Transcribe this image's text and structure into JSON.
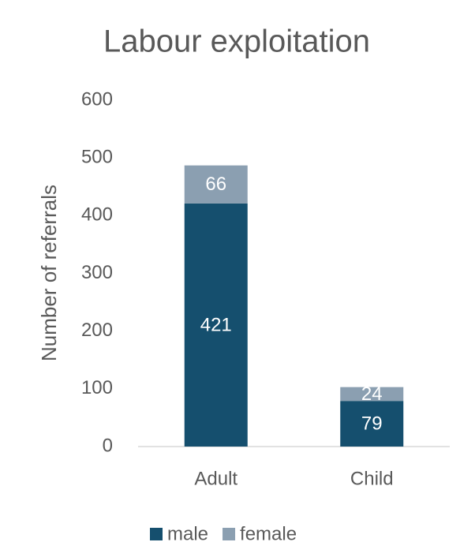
{
  "chart_data": {
    "type": "stacked_bar",
    "title": "Labour exploitation",
    "y_label": "Number of referrals",
    "categories": [
      "Adult",
      "Child"
    ],
    "series": [
      {
        "name": "male",
        "color": "#154f6e",
        "values": [
          421,
          79
        ]
      },
      {
        "name": "female",
        "color": "#8b9fb1",
        "values": [
          66,
          24
        ]
      }
    ],
    "ylim": [
      0,
      600
    ],
    "yticks": [
      0,
      100,
      200,
      300,
      400,
      500,
      600
    ],
    "grid": false,
    "legend": "bottom"
  }
}
